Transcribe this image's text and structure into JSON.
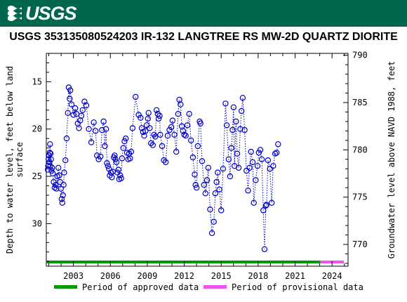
{
  "header": {
    "logo_text": "USGS",
    "logo_icon": "usgs-wave-icon",
    "background": "#00664d"
  },
  "chart_data": {
    "type": "scatter",
    "title": "USGS 353135080524203 IR-132 LANGTREE RS MW-2D QUARTZ DIORITE",
    "ylabel_left": "Depth to water level, feet below land surface",
    "ylabel_right": "Groundwater level above NAVD 1988, feet",
    "xlabel": "",
    "x_ticks": [
      "2003",
      "2006",
      "2009",
      "2012",
      "2015",
      "2018",
      "2021",
      "2024"
    ],
    "y_left_ticks": [
      15,
      20,
      25,
      30
    ],
    "y_right_ticks": [
      770,
      775,
      780,
      785,
      790
    ],
    "y_left_range_inverted": [
      12.0,
      34.5
    ],
    "y_right_range": [
      767.7,
      790.2
    ],
    "x_range": [
      2000.8,
      2025.3
    ],
    "grid": false,
    "series": [
      {
        "marker": "open-circle",
        "line": "dotted",
        "color": "#0000cc",
        "points": [
          [
            2000.92,
            24.3
          ],
          [
            2000.95,
            23.9
          ],
          [
            2000.98,
            23.2
          ],
          [
            2001.02,
            22.8
          ],
          [
            2001.05,
            23.5
          ],
          [
            2001.08,
            22.5
          ],
          [
            2001.1,
            21.6
          ],
          [
            2001.12,
            23.9
          ],
          [
            2001.15,
            22.6
          ],
          [
            2001.18,
            23.2
          ],
          [
            2001.22,
            24.4
          ],
          [
            2001.27,
            24.1
          ],
          [
            2001.33,
            24.7
          ],
          [
            2001.4,
            25.6
          ],
          [
            2001.48,
            26.2
          ],
          [
            2001.55,
            25.9
          ],
          [
            2001.62,
            26.3
          ],
          [
            2001.7,
            25.0
          ],
          [
            2001.78,
            24.1
          ],
          [
            2001.85,
            24.9
          ],
          [
            2001.92,
            25.6
          ],
          [
            2001.98,
            26.3
          ],
          [
            2002.05,
            27.4
          ],
          [
            2002.1,
            27.8
          ],
          [
            2002.15,
            27.0
          ],
          [
            2002.2,
            25.9
          ],
          [
            2002.25,
            24.6
          ],
          [
            2002.35,
            23.3
          ],
          [
            2002.45,
            21.0
          ],
          [
            2002.55,
            18.3
          ],
          [
            2002.62,
            15.6
          ],
          [
            2002.7,
            16.8
          ],
          [
            2002.75,
            15.9
          ],
          [
            2002.85,
            17.4
          ],
          [
            2003.0,
            18.5
          ],
          [
            2003.15,
            17.8
          ],
          [
            2003.25,
            18.4
          ],
          [
            2003.35,
            19.4
          ],
          [
            2003.45,
            19.9
          ],
          [
            2003.55,
            19.1
          ],
          [
            2003.65,
            18.6
          ],
          [
            2003.75,
            18.0
          ],
          [
            2003.9,
            17.1
          ],
          [
            2004.05,
            17.5
          ],
          [
            2004.25,
            20.0
          ],
          [
            2004.45,
            21.4
          ],
          [
            2004.65,
            19.3
          ],
          [
            2004.8,
            20.2
          ],
          [
            2004.92,
            22.8
          ],
          [
            2005.05,
            23.2
          ],
          [
            2005.2,
            22.9
          ],
          [
            2005.32,
            20.1
          ],
          [
            2005.45,
            19.2
          ],
          [
            2005.55,
            21.8
          ],
          [
            2005.65,
            20.0
          ],
          [
            2005.72,
            23.6
          ],
          [
            2005.8,
            23.9
          ],
          [
            2005.88,
            24.2
          ],
          [
            2005.95,
            24.9
          ],
          [
            2006.05,
            24.6
          ],
          [
            2006.12,
            25.1
          ],
          [
            2006.2,
            24.5
          ],
          [
            2006.28,
            23.0
          ],
          [
            2006.35,
            22.8
          ],
          [
            2006.42,
            23.2
          ],
          [
            2006.5,
            23.5
          ],
          [
            2006.58,
            24.6
          ],
          [
            2006.65,
            24.3
          ],
          [
            2006.72,
            25.3
          ],
          [
            2006.8,
            24.9
          ],
          [
            2006.88,
            25.2
          ],
          [
            2006.95,
            23.1
          ],
          [
            2007.05,
            22.0
          ],
          [
            2007.15,
            21.3
          ],
          [
            2007.25,
            21.0
          ],
          [
            2007.35,
            22.5
          ],
          [
            2007.45,
            23.2
          ],
          [
            2007.52,
            22.6
          ],
          [
            2007.6,
            23.1
          ],
          [
            2007.68,
            22.4
          ],
          [
            2007.8,
            19.9
          ],
          [
            2008.05,
            16.6
          ],
          [
            2008.3,
            18.5
          ],
          [
            2008.45,
            18.8
          ],
          [
            2008.55,
            19.9
          ],
          [
            2008.65,
            20.3
          ],
          [
            2008.75,
            20.7
          ],
          [
            2008.85,
            20.2
          ],
          [
            2008.95,
            19.6
          ],
          [
            2009.05,
            18.9
          ],
          [
            2009.1,
            18.3
          ],
          [
            2009.2,
            19.9
          ],
          [
            2009.3,
            21.5
          ],
          [
            2009.45,
            21.7
          ],
          [
            2009.55,
            20.6
          ],
          [
            2009.65,
            20.8
          ],
          [
            2009.75,
            18.0
          ],
          [
            2009.85,
            18.4
          ],
          [
            2009.92,
            18.9
          ],
          [
            2010.0,
            18.6
          ],
          [
            2010.05,
            20.6
          ],
          [
            2010.2,
            21.8
          ],
          [
            2010.35,
            23.3
          ],
          [
            2010.5,
            23.5
          ],
          [
            2010.65,
            20.7
          ],
          [
            2010.8,
            20.1
          ],
          [
            2010.95,
            19.8
          ],
          [
            2011.05,
            19.1
          ],
          [
            2011.2,
            20.6
          ],
          [
            2011.35,
            22.4
          ],
          [
            2011.5,
            18.4
          ],
          [
            2011.6,
            16.9
          ],
          [
            2011.7,
            17.4
          ],
          [
            2011.8,
            19.7
          ],
          [
            2011.9,
            20.2
          ],
          [
            2012.0,
            20.6
          ],
          [
            2012.12,
            20.7
          ],
          [
            2012.25,
            19.6
          ],
          [
            2012.4,
            18.4
          ],
          [
            2012.55,
            21.2
          ],
          [
            2012.7,
            23.0
          ],
          [
            2012.85,
            24.8
          ],
          [
            2012.92,
            25.9
          ],
          [
            2013.0,
            26.2
          ],
          [
            2013.1,
            21.8
          ],
          [
            2013.25,
            19.2
          ],
          [
            2013.32,
            19.4
          ],
          [
            2013.45,
            23.4
          ],
          [
            2013.6,
            25.9
          ],
          [
            2013.72,
            26.8
          ],
          [
            2013.85,
            25.4
          ],
          [
            2013.95,
            24.1
          ],
          [
            2014.1,
            28.5
          ],
          [
            2014.25,
            31.0
          ],
          [
            2014.4,
            29.8
          ],
          [
            2014.52,
            26.8
          ],
          [
            2014.62,
            25.6
          ],
          [
            2014.72,
            24.6
          ],
          [
            2014.85,
            26.4
          ],
          [
            2015.0,
            28.6
          ],
          [
            2015.15,
            24.2
          ],
          [
            2015.35,
            17.3
          ],
          [
            2015.45,
            19.6
          ],
          [
            2015.6,
            23.2
          ],
          [
            2015.72,
            25.0
          ],
          [
            2015.82,
            22.0
          ],
          [
            2015.92,
            20.1
          ],
          [
            2016.0,
            17.7
          ],
          [
            2016.08,
            23.9
          ],
          [
            2016.2,
            19.2
          ],
          [
            2016.3,
            22.6
          ],
          [
            2016.42,
            24.1
          ],
          [
            2016.55,
            20.0
          ],
          [
            2016.65,
            18.1
          ],
          [
            2016.75,
            16.7
          ],
          [
            2016.9,
            20.1
          ],
          [
            2017.05,
            24.4
          ],
          [
            2017.18,
            26.5
          ],
          [
            2017.3,
            24.1
          ],
          [
            2017.42,
            22.4
          ],
          [
            2017.55,
            23.5
          ],
          [
            2017.65,
            27.8
          ],
          [
            2017.8,
            25.4
          ],
          [
            2017.95,
            23.9
          ],
          [
            2018.05,
            22.5
          ],
          [
            2018.18,
            22.2
          ],
          [
            2018.3,
            23.2
          ],
          [
            2018.42,
            28.6
          ],
          [
            2018.52,
            32.7
          ],
          [
            2018.62,
            28.1
          ],
          [
            2018.68,
            28.0
          ],
          [
            2018.8,
            23.3
          ],
          [
            2018.95,
            24.2
          ],
          [
            2019.1,
            27.8
          ],
          [
            2019.22,
            23.9
          ],
          [
            2019.38,
            22.6
          ],
          [
            2019.5,
            22.5
          ],
          [
            2019.62,
            21.6
          ]
        ]
      }
    ],
    "approved_span": [
      2000.85,
      2023.05
    ],
    "provisional_span": [
      2023.05,
      2025.3
    ],
    "legend": [
      {
        "label": "Period of approved data",
        "color": "#009900"
      },
      {
        "label": "Period of provisional data",
        "color": "#ee55ee"
      }
    ],
    "legend_position": "bottom"
  }
}
